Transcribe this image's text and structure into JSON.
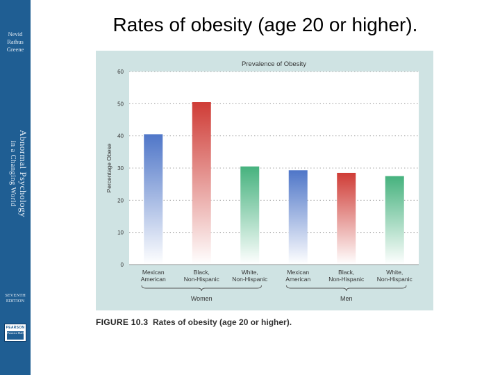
{
  "slide": {
    "title": "Rates of obesity (age 20 or higher)."
  },
  "sidebar": {
    "authors": [
      "Nevid",
      "Rathus",
      "Greene"
    ],
    "book_title_line1": "Abnormal Psychology",
    "book_title_line2": "in a Changing World",
    "edition_line1": "SEVENTH",
    "edition_line2": "EDITION",
    "publisher_logo": [
      "PEARSON",
      "Prentice Hall"
    ],
    "color": "#1f5e93"
  },
  "figure": {
    "background": "#cfe3e3",
    "caption_number": "FIGURE 10.3",
    "caption_text": "Rates of obesity (age 20 or higher)."
  },
  "chart_data": {
    "type": "bar",
    "title": "Prevalence of Obesity",
    "ylabel": "Percentage Obese",
    "xlabel": "",
    "ylim": [
      0,
      60
    ],
    "yticks": [
      0,
      10,
      20,
      30,
      40,
      50,
      60
    ],
    "grid": true,
    "categories": [
      [
        "Mexican",
        "American"
      ],
      [
        "Black,",
        "Non-Hispanic"
      ],
      [
        "White,",
        "Non-Hispanic"
      ],
      [
        "Mexican",
        "American"
      ],
      [
        "Black,",
        "Non-Hispanic"
      ],
      [
        "White,",
        "Non-Hispanic"
      ]
    ],
    "values": [
      40.5,
      50.5,
      30.5,
      29.3,
      28.5,
      27.5
    ],
    "bar_colors": [
      "#4f76c8",
      "#cf3c36",
      "#46b27e",
      "#4f76c8",
      "#cf3c36",
      "#46b27e"
    ],
    "groups": [
      {
        "label": "Women",
        "members": [
          0,
          1,
          2
        ]
      },
      {
        "label": "Men",
        "members": [
          3,
          4,
          5
        ]
      }
    ]
  }
}
